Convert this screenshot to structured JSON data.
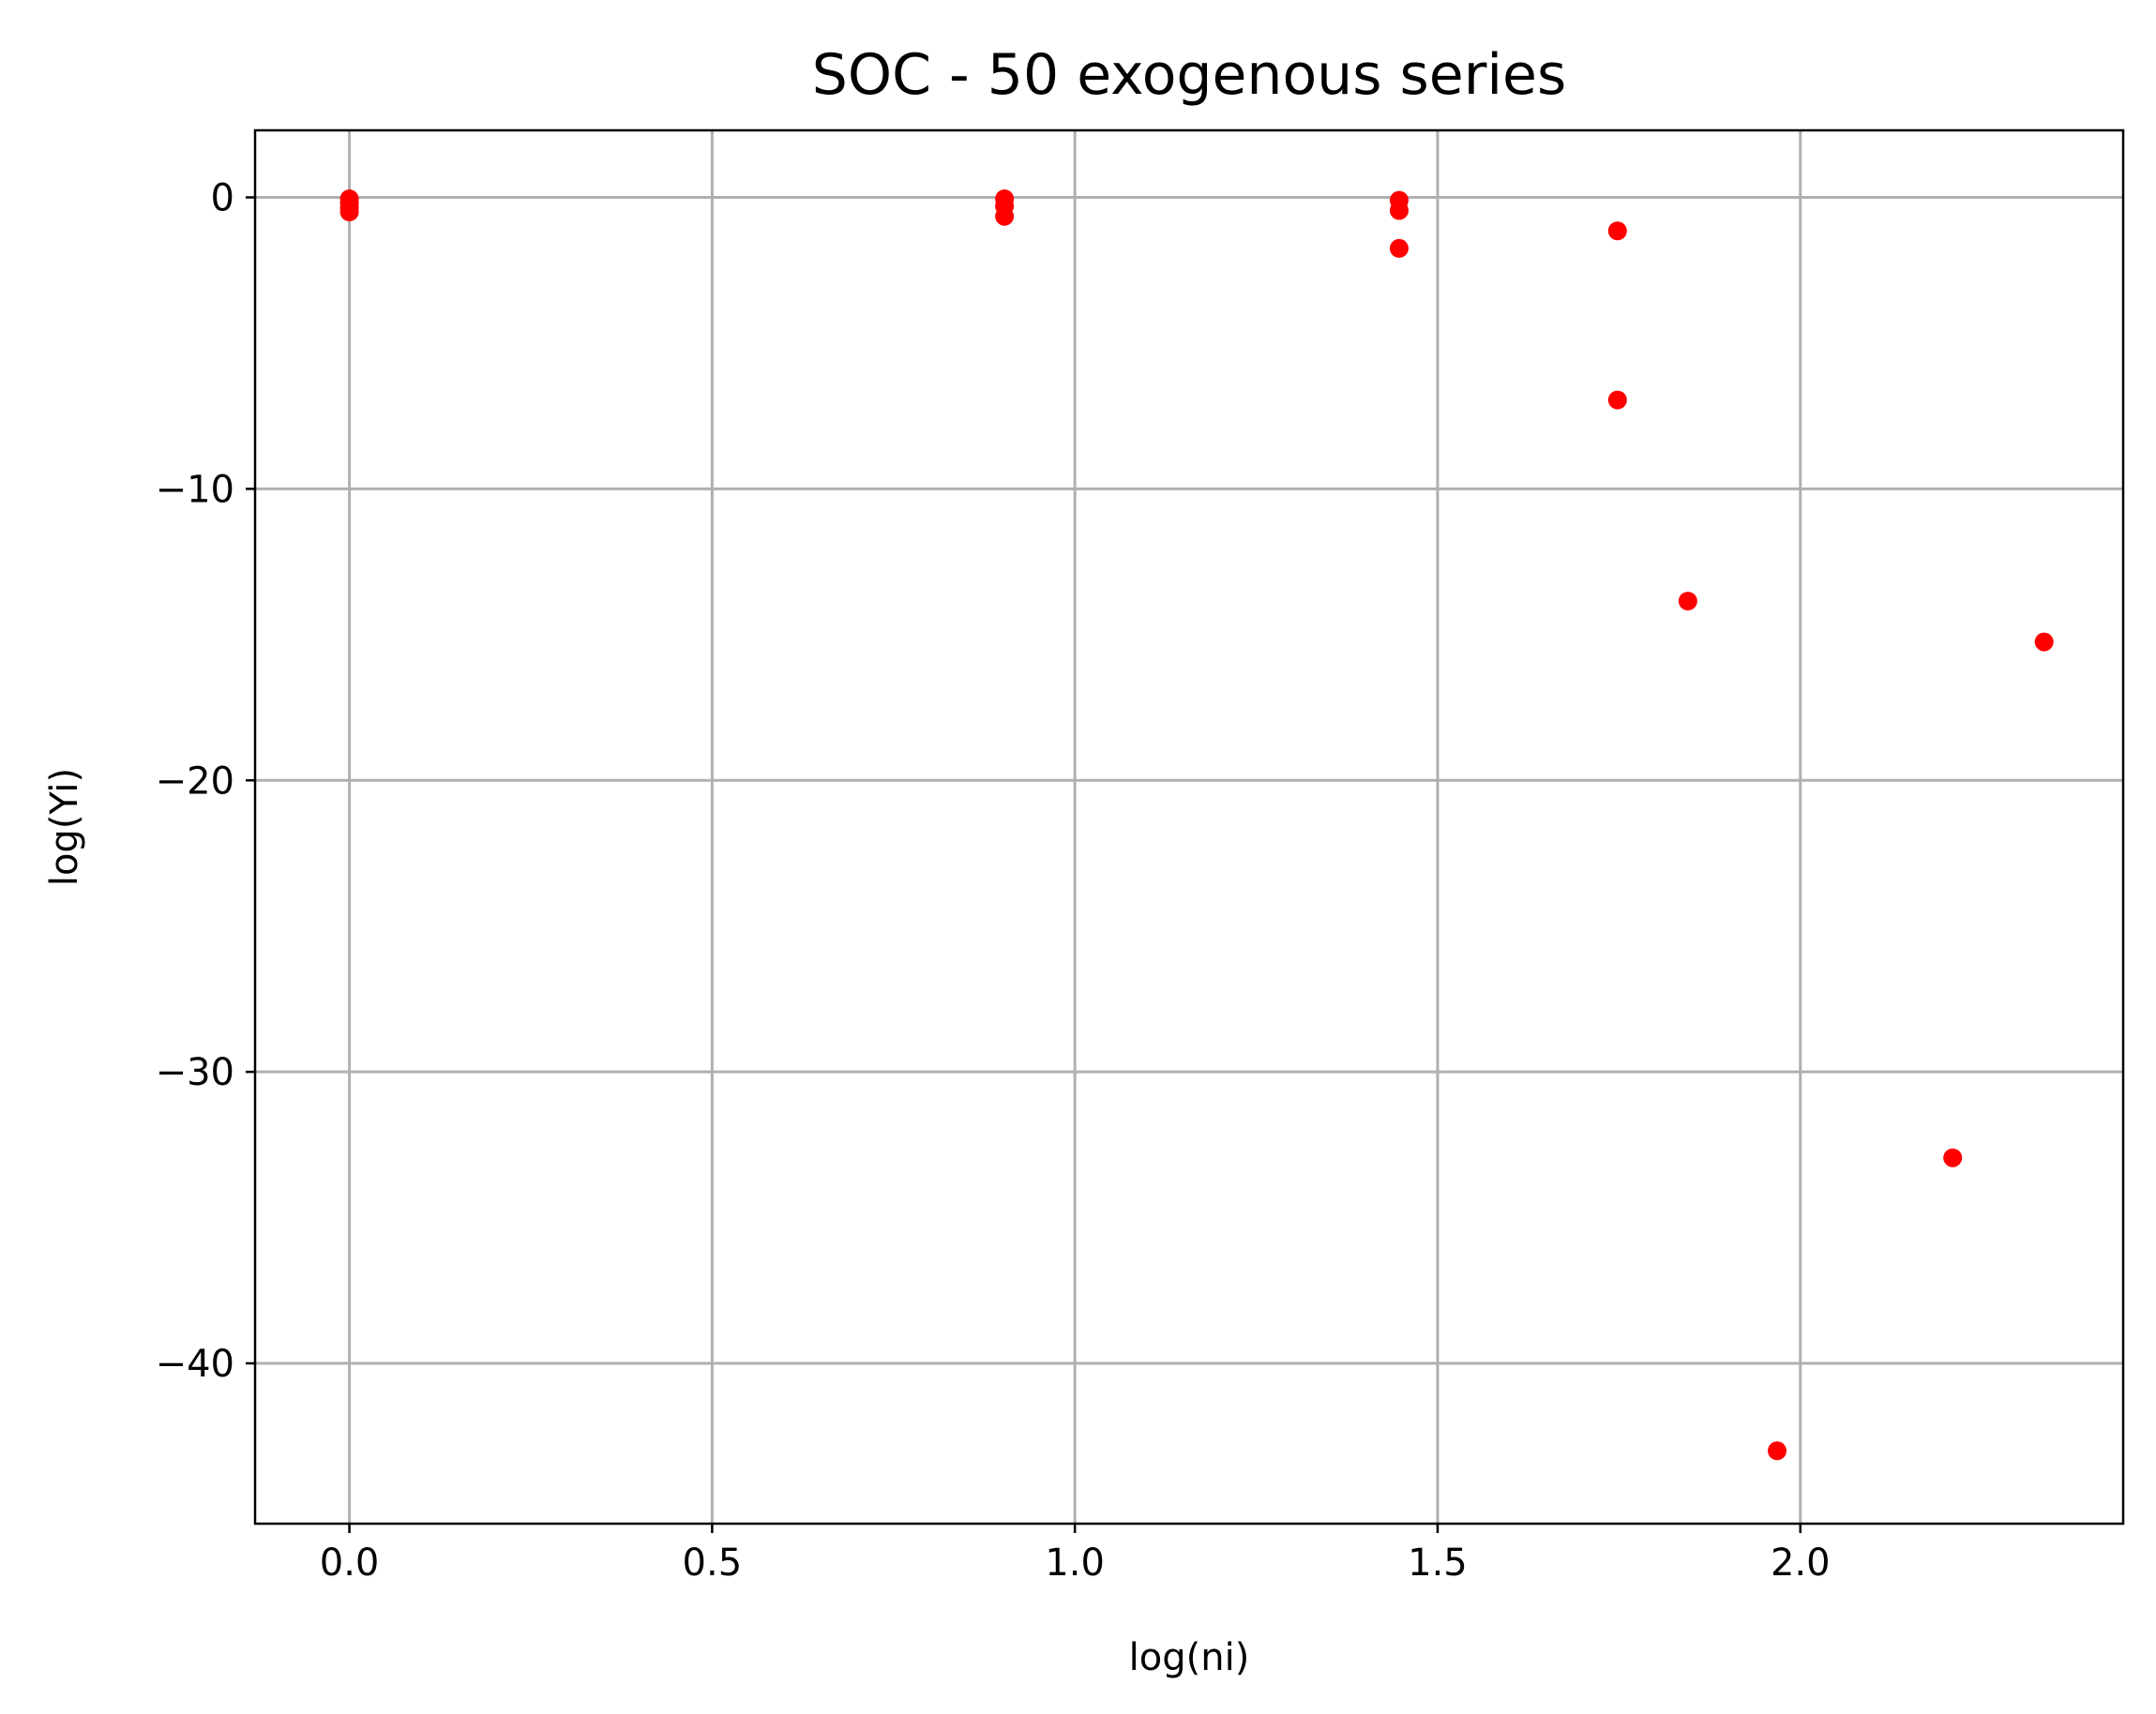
{
  "chart_data": {
    "type": "scatter",
    "title": "SOC - 50 exogenous series",
    "xlabel": "log(ni)",
    "ylabel": "log(Yi)",
    "xlim": [
      -0.13,
      2.445
    ],
    "ylim": [
      -45.5,
      2.3
    ],
    "grid": true,
    "marker_color": "#ff0000",
    "x_ticks": [
      {
        "value": 0.0,
        "label": "0.0"
      },
      {
        "value": 0.5,
        "label": "0.5"
      },
      {
        "value": 1.0,
        "label": "1.0"
      },
      {
        "value": 1.5,
        "label": "1.5"
      },
      {
        "value": 2.0,
        "label": "2.0"
      }
    ],
    "y_ticks": [
      {
        "value": 0,
        "label": "0"
      },
      {
        "value": -10,
        "label": "−10"
      },
      {
        "value": -20,
        "label": "−20"
      },
      {
        "value": -30,
        "label": "−30"
      },
      {
        "value": -40,
        "label": "−40"
      }
    ],
    "points": [
      {
        "x": 0.0,
        "y": -0.05
      },
      {
        "x": 0.0,
        "y": -0.2
      },
      {
        "x": 0.0,
        "y": -0.35
      },
      {
        "x": 0.0,
        "y": -0.5
      },
      {
        "x": 0.903,
        "y": -0.05
      },
      {
        "x": 0.903,
        "y": -0.3
      },
      {
        "x": 0.903,
        "y": -0.65
      },
      {
        "x": 1.447,
        "y": -0.1
      },
      {
        "x": 1.447,
        "y": -0.45
      },
      {
        "x": 1.447,
        "y": -1.75
      },
      {
        "x": 1.748,
        "y": -1.15
      },
      {
        "x": 1.748,
        "y": -6.95
      },
      {
        "x": 1.845,
        "y": -13.85
      },
      {
        "x": 1.968,
        "y": -43.0
      },
      {
        "x": 2.21,
        "y": -32.95
      },
      {
        "x": 2.336,
        "y": -15.25
      }
    ]
  }
}
